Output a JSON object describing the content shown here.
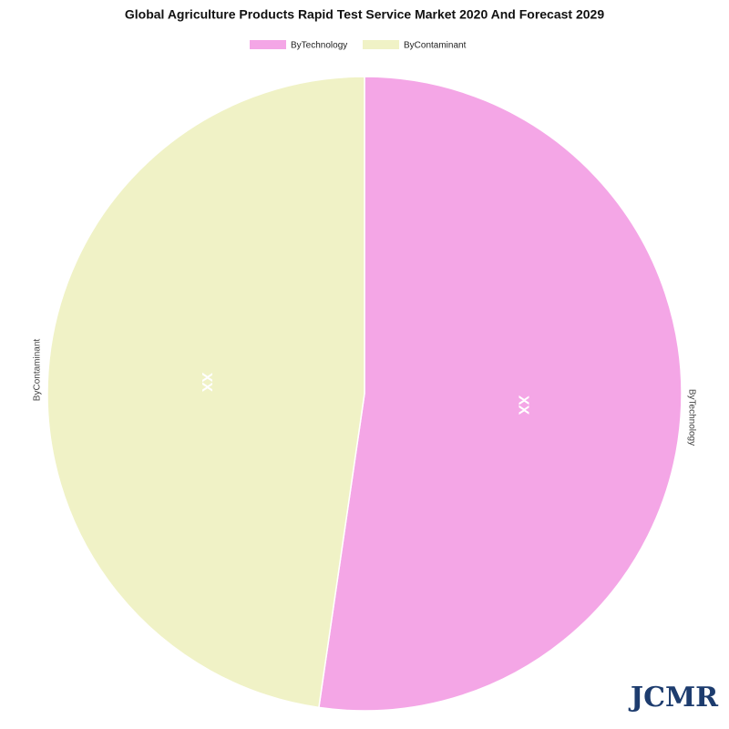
{
  "chart_data": {
    "type": "pie",
    "title": "Global Agriculture Products Rapid Test Service Market 2020 And Forecast 2029",
    "categories": [
      "ByTechnology",
      "ByContaminant"
    ],
    "values": [
      52.3,
      47.7
    ],
    "colors": [
      "#f4a6e6",
      "#f0f2c6"
    ],
    "slice_labels": [
      "XX",
      "XX"
    ],
    "watermark": "JCMR"
  }
}
